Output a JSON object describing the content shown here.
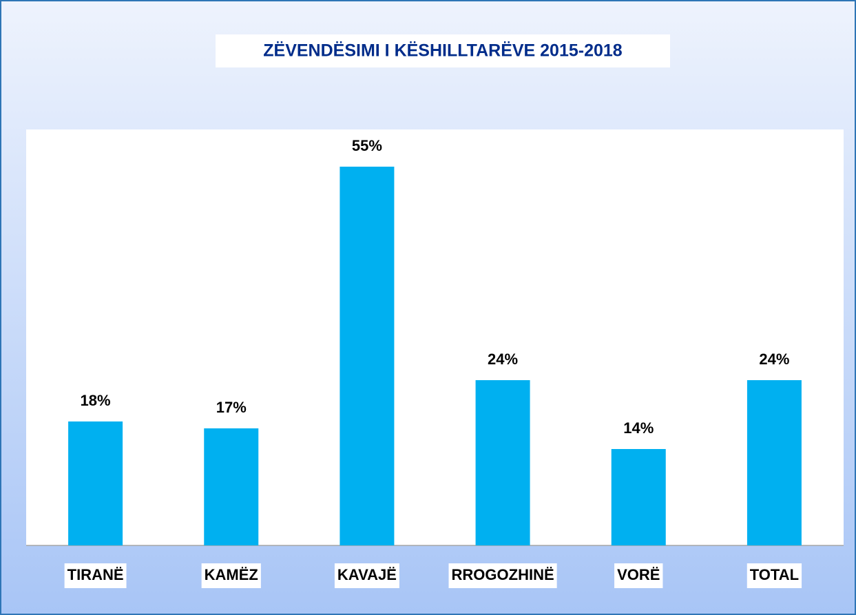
{
  "chart_data": {
    "type": "bar",
    "title": "ZËVENDËSIMI I KËSHILLTARËVE 2015-2018",
    "categories": [
      "TIRANË",
      "KAMËZ",
      "KAVAJË",
      "RROGOZHINË",
      "VORË",
      "TOTAL"
    ],
    "values": [
      18,
      17,
      55,
      24,
      14,
      24
    ],
    "value_labels": [
      "18%",
      "17%",
      "55%",
      "24%",
      "14%",
      "24%"
    ],
    "color": "#00b0f0"
  }
}
